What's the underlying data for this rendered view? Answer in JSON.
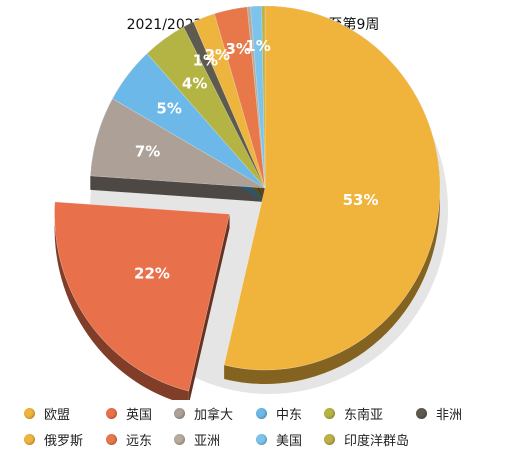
{
  "chart_data": {
    "type": "pie",
    "title": "2021/2022各市场出口份额 - 截至第9周",
    "slices": [
      {
        "label": "欧盟",
        "value": 53,
        "display": "53%",
        "color": "#F0B43C"
      },
      {
        "label": "英国",
        "value": 22,
        "display": "22%",
        "color": "#E8704A",
        "exploded": true
      },
      {
        "label": "加拿大",
        "value": 7,
        "display": "7%",
        "color": "#ADA097"
      },
      {
        "label": "中东",
        "value": 5,
        "display": "5%",
        "color": "#6CB8E8"
      },
      {
        "label": "东南亚",
        "value": 4,
        "display": "4%",
        "color": "#B4B444"
      },
      {
        "label": "非洲",
        "value": 1,
        "display": "1%",
        "color": "#5E5A4E"
      },
      {
        "label": "俄罗斯",
        "value": 2,
        "display": "2%",
        "color": "#EDB53E"
      },
      {
        "label": "远东",
        "value": 3,
        "display": "3%",
        "color": "#E8784A"
      },
      {
        "label": "亚洲",
        "value": 0.3,
        "display": "",
        "color": "#B8AA9C"
      },
      {
        "label": "美国",
        "value": 1,
        "display": "1%",
        "color": "#7CC4EC"
      },
      {
        "label": "印度洋群岛",
        "value": 0.3,
        "display": "",
        "color": "#BCB048"
      }
    ],
    "legend_order": [
      "欧盟",
      "英国",
      "加拿大",
      "中东",
      "东南亚",
      "非洲",
      "俄罗斯",
      "远东",
      "亚洲",
      "美国",
      "印度洋群岛"
    ],
    "legend_position": "bottom"
  }
}
